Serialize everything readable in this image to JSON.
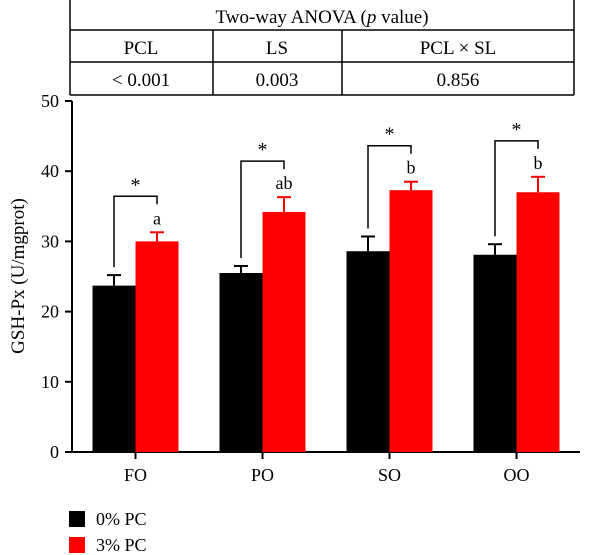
{
  "anova_table": {
    "title_prefix": "Two-way ANOVA (",
    "title_p": "p",
    "title_suffix": " value)",
    "headers": [
      "PCL",
      "LS",
      "PCL × SL"
    ],
    "values": [
      "< 0.001",
      "0.003",
      "0.856"
    ]
  },
  "colors": {
    "series_0": "#000000",
    "series_1": "#ff0000"
  },
  "chart_data": {
    "type": "bar",
    "categories": [
      "FO",
      "PO",
      "SO",
      "OO"
    ],
    "ylabel": "GSH-Px (U/mgprot)",
    "xlabel": "",
    "ylim": [
      0,
      50
    ],
    "yticks": [
      0,
      10,
      20,
      30,
      40,
      50
    ],
    "series": [
      {
        "name": "0% PC",
        "values": [
          23.7,
          25.5,
          28.6,
          28.1
        ],
        "errors": [
          1.5,
          1.0,
          2.1,
          1.5
        ]
      },
      {
        "name": "3% PC",
        "values": [
          30.0,
          34.2,
          37.3,
          37.0
        ],
        "errors": [
          1.3,
          2.1,
          1.2,
          2.2
        ]
      }
    ],
    "letters": [
      "a",
      "ab",
      "b",
      "b"
    ],
    "significance": [
      "*",
      "*",
      "*",
      "*"
    ],
    "legend_position": "bottom-left"
  }
}
